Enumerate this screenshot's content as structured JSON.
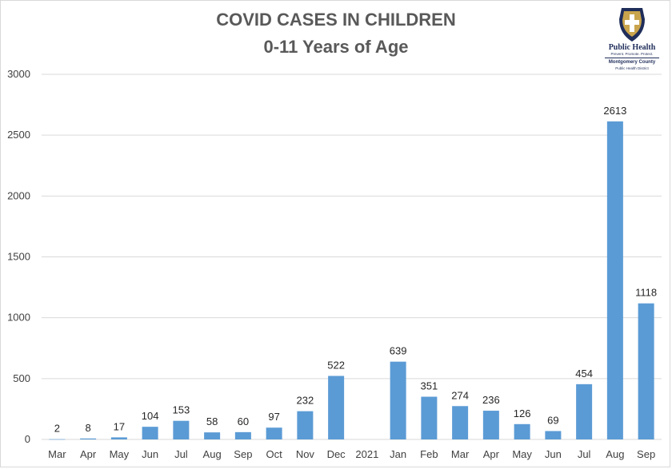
{
  "header": {
    "title_line1": "COVID CASES IN CHILDREN",
    "title_line2": "0-11 Years of Age"
  },
  "logo": {
    "brand": "Public Health",
    "tagline": "Prevent. Promote. Protect.",
    "county": "Montgomery County",
    "district": "Public Health District"
  },
  "colors": {
    "bar": "#5b9bd5",
    "grid": "#d9d9d9",
    "logo_navy": "#1f2d5a",
    "logo_gold": "#c9a44c"
  },
  "chart_data": {
    "type": "bar",
    "title": "COVID CASES IN CHILDREN 0-11 Years of Age",
    "categories": [
      "Mar",
      "Apr",
      "May",
      "Jun",
      "Jul",
      "Aug",
      "Sep",
      "Oct",
      "Nov",
      "Dec",
      "2021",
      "Jan",
      "Feb",
      "Mar",
      "Apr",
      "May",
      "Jun",
      "Jul",
      "Aug",
      "Sep"
    ],
    "values": [
      2,
      8,
      17,
      104,
      153,
      58,
      60,
      97,
      232,
      522,
      null,
      639,
      351,
      274,
      236,
      126,
      69,
      454,
      2613,
      1118
    ],
    "data_labels": [
      "2",
      "8",
      "17",
      "104",
      "153",
      "58",
      "60",
      "97",
      "232",
      "522",
      "",
      "639",
      "351",
      "274",
      "236",
      "126",
      "69",
      "454",
      "2613",
      "1118"
    ],
    "yticks": [
      "0",
      "500",
      "1000",
      "1500",
      "2000",
      "2500",
      "3000"
    ],
    "ylim": [
      0,
      3000
    ],
    "grid": true,
    "legend": "none",
    "xlabel": "",
    "ylabel": ""
  }
}
